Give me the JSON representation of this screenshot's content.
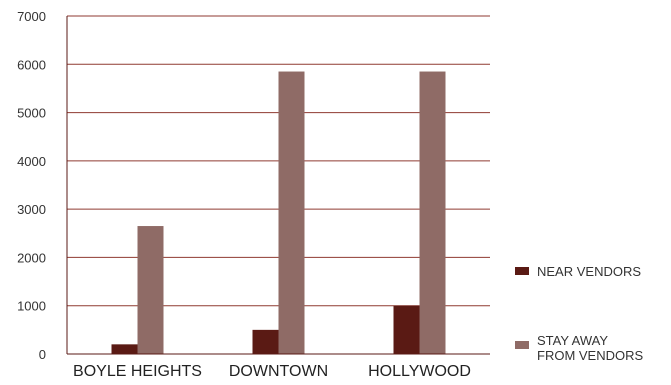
{
  "chart_data": {
    "type": "bar",
    "categories": [
      "BOYLE HEIGHTS",
      "DOWNTOWN",
      "HOLLYWOOD"
    ],
    "series": [
      {
        "name": "NEAR VENDORS",
        "values": [
          200,
          500,
          1000
        ],
        "color": "#5a1a14"
      },
      {
        "name": "STAY AWAY FROM VENDORS",
        "values": [
          2650,
          5850,
          5850
        ],
        "color": "#8f6b66"
      }
    ],
    "title": "",
    "xlabel": "",
    "ylabel": "",
    "ylim": [
      0,
      7000
    ],
    "yticks": [
      0,
      1000,
      2000,
      3000,
      4000,
      5000,
      6000,
      7000
    ],
    "grid": true,
    "legend_position": "right",
    "axis_color": "#5a1a14",
    "grid_color": "#8f3a30"
  }
}
